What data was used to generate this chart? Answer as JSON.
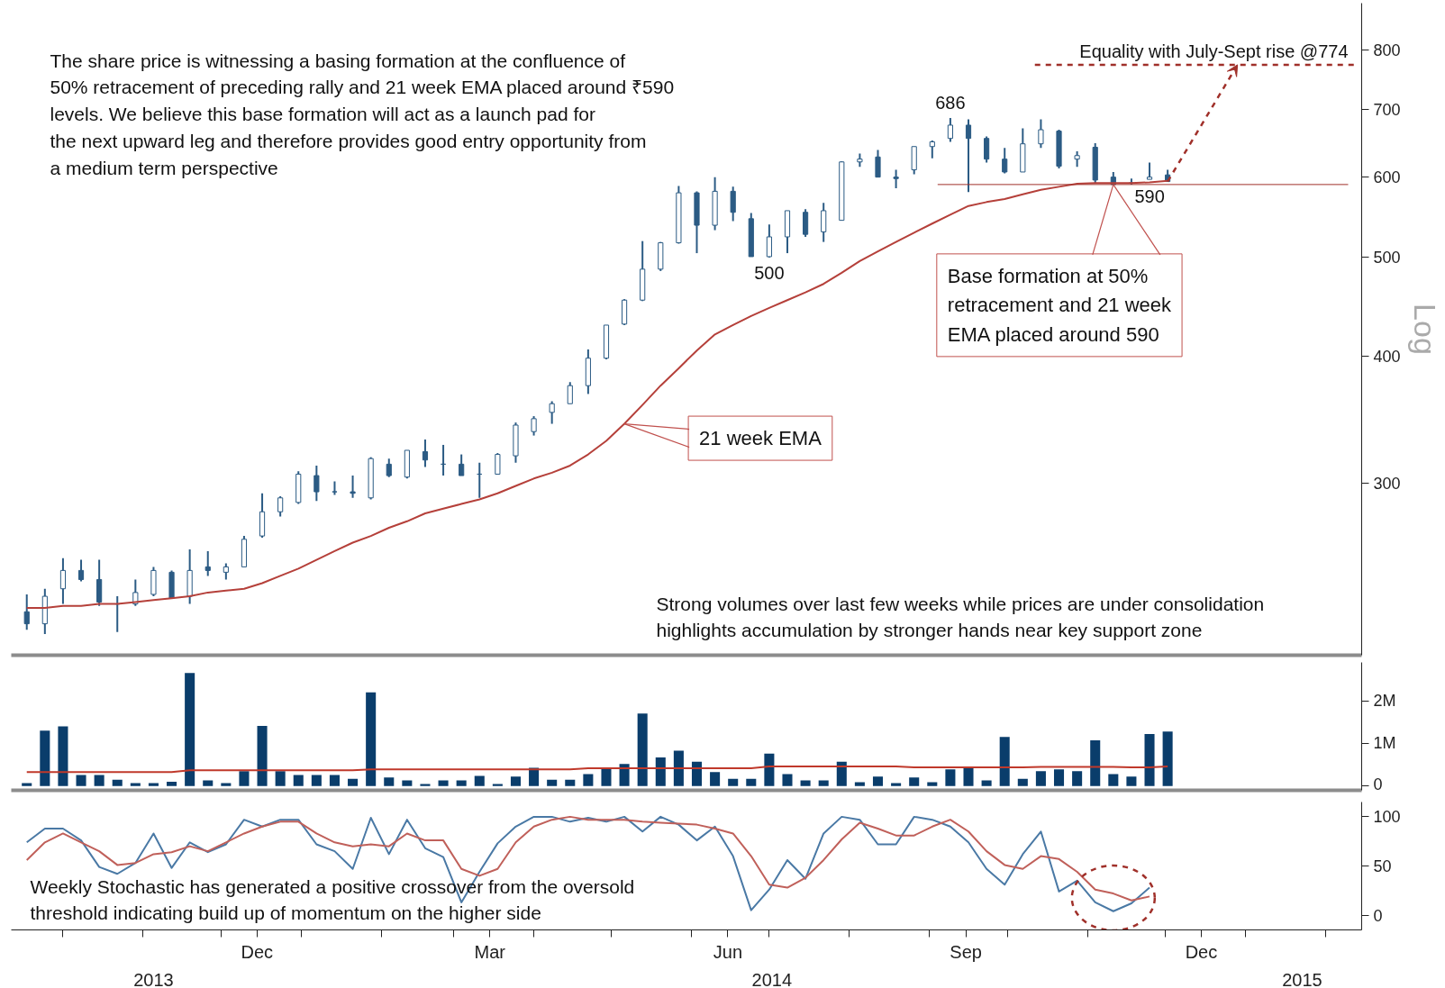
{
  "chart_data": [
    {
      "type": "candlestick",
      "log": true,
      "ylabel": "Log",
      "tick_labels": "y",
      "color": "#2b5b84",
      "xlim": [
        "2013-09-11",
        "2015-02-15"
      ],
      "ylim": [
        203,
        890
      ],
      "yticks": [
        300,
        400,
        500,
        600,
        700,
        800
      ],
      "x": [
        "2013-09-17",
        "2013-09-24",
        "2013-10-01",
        "2013-10-08",
        "2013-10-15",
        "2013-10-22",
        "2013-10-29",
        "2013-11-05",
        "2013-11-12",
        "2013-11-19",
        "2013-11-26",
        "2013-12-03",
        "2013-12-10",
        "2013-12-17",
        "2013-12-24",
        "2013-12-31",
        "2014-01-07",
        "2014-01-14",
        "2014-01-21",
        "2014-01-28",
        "2014-02-04",
        "2014-02-11",
        "2014-02-18",
        "2014-02-25",
        "2014-03-04",
        "2014-03-11",
        "2014-03-18",
        "2014-03-25",
        "2014-04-01",
        "2014-04-08",
        "2014-04-15",
        "2014-04-22",
        "2014-04-29",
        "2014-05-06",
        "2014-05-13",
        "2014-05-20",
        "2014-05-27",
        "2014-06-03",
        "2014-06-10",
        "2014-06-17",
        "2014-06-24",
        "2014-07-01",
        "2014-07-08",
        "2014-07-15",
        "2014-07-22",
        "2014-07-29",
        "2014-08-05",
        "2014-08-12",
        "2014-08-19",
        "2014-08-26",
        "2014-09-02",
        "2014-09-09",
        "2014-09-16",
        "2014-09-23",
        "2014-09-30",
        "2014-10-07",
        "2014-10-14",
        "2014-10-21",
        "2014-10-28",
        "2014-11-04",
        "2014-11-11",
        "2014-11-18",
        "2014-11-25",
        "2014-12-02"
      ],
      "ohlc": [
        [
          224,
          233,
          215,
          218
        ],
        [
          218,
          236,
          213,
          232
        ],
        [
          236,
          253,
          228,
          246
        ],
        [
          246,
          252,
          240,
          241
        ],
        [
          241,
          252,
          227,
          229
        ],
        [
          228,
          232,
          214,
          228
        ],
        [
          228,
          241,
          227,
          234
        ],
        [
          233,
          248,
          232,
          246
        ],
        [
          245,
          246,
          231,
          231
        ],
        [
          232,
          258,
          228,
          246
        ],
        [
          248,
          257,
          243,
          246
        ],
        [
          245,
          250,
          241,
          248
        ],
        [
          248,
          266,
          248,
          264
        ],
        [
          266,
          293,
          265,
          281
        ],
        [
          281,
          291,
          278,
          290
        ],
        [
          287,
          308,
          286,
          306
        ],
        [
          305,
          312,
          288,
          294
        ],
        [
          294,
          301,
          292,
          294
        ],
        [
          294,
          305,
          290,
          293
        ],
        [
          290,
          318,
          289,
          317
        ],
        [
          313,
          317,
          304,
          305
        ],
        [
          304,
          323,
          303,
          323
        ],
        [
          322,
          331,
          311,
          316
        ],
        [
          313,
          327,
          305,
          313
        ],
        [
          313,
          320,
          305,
          305
        ],
        [
          306,
          314,
          290,
          306
        ],
        [
          306,
          321,
          306,
          320
        ],
        [
          319,
          344,
          314,
          342
        ],
        [
          337,
          349,
          334,
          347
        ],
        [
          352,
          361,
          343,
          359
        ],
        [
          359,
          377,
          359,
          374
        ],
        [
          374,
          406,
          367,
          398
        ],
        [
          398,
          429,
          397,
          429
        ],
        [
          430,
          455,
          429,
          454
        ],
        [
          454,
          519,
          453,
          487
        ],
        [
          487,
          518,
          485,
          517
        ],
        [
          517,
          588,
          516,
          579
        ],
        [
          579,
          581,
          505,
          538
        ],
        [
          538,
          600,
          532,
          581
        ],
        [
          581,
          587,
          543,
          554
        ],
        [
          546,
          553,
          501,
          501
        ],
        [
          501,
          539,
          500,
          524
        ],
        [
          524,
          556,
          505,
          556
        ],
        [
          554,
          558,
          524,
          527
        ],
        [
          530,
          566,
          518,
          556
        ],
        [
          544,
          622,
          544,
          621
        ],
        [
          621,
          633,
          614,
          625
        ],
        [
          628,
          638,
          600,
          600
        ],
        [
          600,
          610,
          585,
          598
        ],
        [
          610,
          643,
          604,
          643
        ],
        [
          643,
          652,
          626,
          650
        ],
        [
          655,
          686,
          650,
          675
        ],
        [
          675,
          684,
          580,
          655
        ],
        [
          655,
          658,
          620,
          625
        ],
        [
          625,
          641,
          605,
          607
        ],
        [
          607,
          670,
          607,
          647
        ],
        [
          647,
          684,
          641,
          668
        ],
        [
          666,
          668,
          612,
          615
        ],
        [
          625,
          636,
          614,
          630
        ],
        [
          642,
          648,
          592,
          596
        ],
        [
          600,
          607,
          590,
          590
        ],
        [
          592,
          598,
          590,
          592
        ],
        [
          597,
          620,
          597,
          600
        ],
        [
          603,
          610,
          594,
          594
        ]
      ],
      "series": [
        {
          "type": "line",
          "color": "#b5403a",
          "values": [
            226,
            226,
            227,
            227,
            228,
            228,
            229,
            230,
            231,
            232,
            234,
            235,
            236,
            239,
            243,
            247,
            252,
            257,
            262,
            266,
            271,
            275,
            280,
            283,
            286,
            289,
            293,
            298,
            303,
            307,
            312,
            320,
            330,
            343,
            358,
            374,
            389,
            405,
            420,
            429,
            438,
            446,
            454,
            462,
            471,
            483,
            496,
            507,
            518,
            529,
            540,
            551,
            562,
            567,
            571,
            577,
            583,
            587,
            591,
            592,
            592,
            592,
            593,
            595
          ]
        }
      ],
      "ref_lines": [
        {
          "axis": "y",
          "value": 774,
          "label": "Equality with July-Sept rise @774",
          "color": "#a0302a",
          "line_style": "dashed"
        },
        {
          "axis": "y",
          "value": 590,
          "label": "590",
          "color": "#a0302a"
        }
      ],
      "annotations": [
        "The share price is witnessing a basing formation at the confluence of 50% retracement of preceding rally and 21 week EMA placed around ₹590 levels. We believe this base formation will act as a launch pad for the next upward leg and therefore provides good entry opportunity from a medium term perspective",
        "Strong volumes over last few weeks while prices are under consolidation highlights accumulation by stronger hands near key support zone",
        {
          "text": "686",
          "x": "2014-09-09",
          "y": 686
        },
        {
          "text": "500",
          "x": "2014-07-01",
          "y": 500
        },
        {
          "text": "21 week EMA",
          "x": "2014-05-06",
          "y": 343
        },
        {
          "text": "Base formation at 50% retracement and 21 week EMA placed around 590",
          "x": "2014-11-11",
          "y": 590
        }
      ]
    },
    {
      "type": "bar",
      "tick_labels": "y",
      "xlim": [
        "2013-09-11",
        "2015-02-15"
      ],
      "ylim": [
        -0.1,
        2.9
      ],
      "yticks": [
        {
          "value": 0,
          "label": "0"
        },
        {
          "value": 1,
          "label": "1M"
        },
        {
          "value": 2,
          "label": "2M"
        }
      ],
      "x": [
        "2013-09-17",
        "2013-09-24",
        "2013-10-01",
        "2013-10-08",
        "2013-10-15",
        "2013-10-22",
        "2013-10-29",
        "2013-11-05",
        "2013-11-12",
        "2013-11-19",
        "2013-11-26",
        "2013-12-03",
        "2013-12-10",
        "2013-12-17",
        "2013-12-24",
        "2013-12-31",
        "2014-01-07",
        "2014-01-14",
        "2014-01-21",
        "2014-01-28",
        "2014-02-04",
        "2014-02-11",
        "2014-02-18",
        "2014-02-25",
        "2014-03-04",
        "2014-03-11",
        "2014-03-18",
        "2014-03-25",
        "2014-04-01",
        "2014-04-08",
        "2014-04-15",
        "2014-04-22",
        "2014-04-29",
        "2014-05-06",
        "2014-05-13",
        "2014-05-20",
        "2014-05-27",
        "2014-06-03",
        "2014-06-10",
        "2014-06-17",
        "2014-06-24",
        "2014-07-01",
        "2014-07-08",
        "2014-07-15",
        "2014-07-22",
        "2014-07-29",
        "2014-08-05",
        "2014-08-12",
        "2014-08-19",
        "2014-08-26",
        "2014-09-02",
        "2014-09-09",
        "2014-09-16",
        "2014-09-23",
        "2014-09-30",
        "2014-10-07",
        "2014-10-14",
        "2014-10-21",
        "2014-10-28",
        "2014-11-04",
        "2014-11-11",
        "2014-11-18",
        "2014-11-25",
        "2014-12-02"
      ],
      "series": [
        {
          "type": "bar",
          "color": "#0a3d6b",
          "values": [
            0.07,
            1.3,
            1.4,
            0.26,
            0.26,
            0.15,
            0.07,
            0.07,
            0.1,
            2.65,
            0.13,
            0.07,
            0.35,
            1.41,
            0.35,
            0.26,
            0.26,
            0.26,
            0.17,
            2.2,
            0.2,
            0.13,
            0.05,
            0.13,
            0.13,
            0.24,
            0.05,
            0.22,
            0.43,
            0.15,
            0.15,
            0.28,
            0.41,
            0.52,
            1.7,
            0.67,
            0.83,
            0.57,
            0.33,
            0.17,
            0.17,
            0.76,
            0.28,
            0.13,
            0.13,
            0.57,
            0.09,
            0.22,
            0.07,
            0.2,
            0.09,
            0.39,
            0.43,
            0.13,
            1.15,
            0.17,
            0.35,
            0.39,
            0.35,
            1.07,
            0.28,
            0.22,
            1.22,
            1.28
          ]
        },
        {
          "type": "line",
          "color": "#c0392b",
          "values": [
            0.33,
            0.33,
            0.33,
            0.33,
            0.33,
            0.33,
            0.33,
            0.33,
            0.33,
            0.37,
            0.37,
            0.37,
            0.37,
            0.37,
            0.37,
            0.37,
            0.37,
            0.37,
            0.37,
            0.39,
            0.39,
            0.39,
            0.39,
            0.39,
            0.39,
            0.39,
            0.39,
            0.39,
            0.39,
            0.39,
            0.39,
            0.42,
            0.42,
            0.42,
            0.42,
            0.42,
            0.42,
            0.42,
            0.42,
            0.42,
            0.42,
            0.46,
            0.46,
            0.46,
            0.46,
            0.46,
            0.46,
            0.46,
            0.46,
            0.44,
            0.44,
            0.44,
            0.44,
            0.44,
            0.44,
            0.44,
            0.45,
            0.45,
            0.45,
            0.45,
            0.45,
            0.44,
            0.44,
            0.46
          ]
        }
      ]
    },
    {
      "type": "line",
      "xlim": [
        "2013-09-11",
        "2015-02-15"
      ],
      "ylim": [
        -15,
        115
      ],
      "yticks": [
        0,
        50,
        100
      ],
      "xticks": [
        {
          "value": "2013-10-01",
          "label": null
        },
        {
          "value": "2013-11-01",
          "label": null
        },
        {
          "value": "2013-12-01",
          "label": null
        },
        {
          "value": "2014-01-01",
          "label": null
        },
        {
          "value": "2014-02-01",
          "label": null
        },
        {
          "value": "2014-03-01",
          "label": null
        },
        {
          "value": "2014-04-01",
          "label": null
        },
        {
          "value": "2014-05-01",
          "label": null
        },
        {
          "value": "2014-06-01",
          "label": null
        },
        {
          "value": "2014-07-01",
          "label": null
        },
        {
          "value": "2014-08-01",
          "label": null
        },
        {
          "value": "2014-09-01",
          "label": null
        },
        {
          "value": "2014-10-01",
          "label": null
        },
        {
          "value": "2014-11-01",
          "label": null
        },
        {
          "value": "2014-12-01",
          "label": null
        },
        {
          "value": "2015-01-01",
          "label": null
        },
        {
          "value": "2015-02-01",
          "label": null
        },
        {
          "value": "2013-12-15",
          "label": "Dec"
        },
        {
          "value": "2014-03-15",
          "label": "Mar"
        },
        {
          "value": "2014-06-15",
          "label": "Jun"
        },
        {
          "value": "2014-09-15",
          "label": "Sep"
        },
        {
          "value": "2014-12-15",
          "label": "Dec"
        }
      ],
      "x2lim": [
        "2013-09-11",
        "2015-02-15"
      ],
      "x2ticks": [
        {
          "value": "2013-11-05",
          "label": "2013"
        },
        {
          "value": "2014-07-02",
          "label": "2014"
        },
        {
          "value": "2015-01-23",
          "label": "2015"
        }
      ],
      "x": [
        "2013-09-17",
        "2013-09-24",
        "2013-10-01",
        "2013-10-08",
        "2013-10-15",
        "2013-10-22",
        "2013-10-29",
        "2013-11-05",
        "2013-11-12",
        "2013-11-19",
        "2013-11-26",
        "2013-12-03",
        "2013-12-10",
        "2013-12-17",
        "2013-12-24",
        "2013-12-31",
        "2014-01-07",
        "2014-01-14",
        "2014-01-21",
        "2014-01-28",
        "2014-02-04",
        "2014-02-11",
        "2014-02-18",
        "2014-02-25",
        "2014-03-04",
        "2014-03-11",
        "2014-03-18",
        "2014-03-25",
        "2014-04-01",
        "2014-04-08",
        "2014-04-15",
        "2014-04-22",
        "2014-04-29",
        "2014-05-06",
        "2014-05-13",
        "2014-05-20",
        "2014-05-27",
        "2014-06-03",
        "2014-06-10",
        "2014-06-17",
        "2014-06-24",
        "2014-07-01",
        "2014-07-08",
        "2014-07-15",
        "2014-07-22",
        "2014-07-29",
        "2014-08-05",
        "2014-08-12",
        "2014-08-19",
        "2014-08-26",
        "2014-09-02",
        "2014-09-09",
        "2014-09-16",
        "2014-09-23",
        "2014-09-30",
        "2014-10-07",
        "2014-10-14",
        "2014-10-21",
        "2014-10-28",
        "2014-11-04",
        "2014-11-11",
        "2014-11-18",
        "2014-11-25"
      ],
      "series": [
        {
          "color": "#4a79a5",
          "values": [
            74,
            88,
            88,
            76,
            49,
            42,
            53,
            83,
            48,
            74,
            64,
            72,
            97,
            90,
            97,
            97,
            72,
            65,
            47,
            99,
            62,
            97,
            68,
            59,
            13,
            44,
            73,
            90,
            100,
            100,
            95,
            99,
            95,
            100,
            85,
            100,
            92,
            76,
            90,
            60,
            5,
            26,
            56,
            37,
            83,
            100,
            97,
            72,
            72,
            100,
            97,
            90,
            74,
            47,
            31,
            62,
            85,
            24,
            35,
            13,
            4,
            12,
            28
          ]
        },
        {
          "color": "#c0605a",
          "values": [
            56,
            74,
            83,
            74,
            65,
            51,
            53,
            62,
            64,
            70,
            65,
            74,
            83,
            90,
            95,
            95,
            83,
            74,
            70,
            72,
            70,
            83,
            76,
            76,
            47,
            40,
            47,
            74,
            90,
            97,
            100,
            97,
            97,
            97,
            95,
            94,
            93,
            92,
            88,
            83,
            60,
            31,
            28,
            38,
            56,
            77,
            94,
            88,
            81,
            81,
            90,
            97,
            85,
            65,
            51,
            47,
            60,
            57,
            44,
            26,
            22,
            15,
            19
          ]
        }
      ],
      "annotations": [
        "Weekly Stochastic has generated a positive crossover from the oversold threshold indicating build up of momentum on the higher side"
      ]
    }
  ]
}
